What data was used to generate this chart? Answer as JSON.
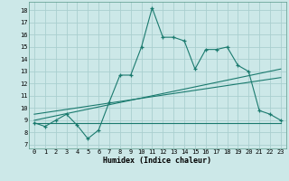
{
  "xlabel": "Humidex (Indice chaleur)",
  "background_color": "#cce8e8",
  "grid_color": "#aacfcf",
  "line_color": "#1a7a6e",
  "x_ticks": [
    0,
    1,
    2,
    3,
    4,
    5,
    6,
    7,
    8,
    9,
    10,
    11,
    12,
    13,
    14,
    15,
    16,
    17,
    18,
    19,
    20,
    21,
    22,
    23
  ],
  "y_ticks": [
    7,
    8,
    9,
    10,
    11,
    12,
    13,
    14,
    15,
    16,
    17,
    18
  ],
  "xlim": [
    -0.5,
    23.5
  ],
  "ylim": [
    6.7,
    18.7
  ],
  "series1_x": [
    0,
    1,
    2,
    3,
    4,
    5,
    6,
    7,
    8,
    9,
    10,
    11,
    12,
    13,
    14,
    15,
    16,
    17,
    18,
    19,
    20,
    21,
    22,
    23
  ],
  "series1_y": [
    8.8,
    8.5,
    9.0,
    9.5,
    8.6,
    7.5,
    8.2,
    10.5,
    12.7,
    12.7,
    15.0,
    18.2,
    15.8,
    15.8,
    15.5,
    13.2,
    14.8,
    14.8,
    15.0,
    13.5,
    13.0,
    9.8,
    9.5,
    9.0
  ],
  "series2_x": [
    0,
    23
  ],
  "series2_y": [
    8.8,
    8.8
  ],
  "series3_x": [
    0,
    23
  ],
  "series3_y": [
    9.0,
    13.2
  ],
  "series4_x": [
    0,
    23
  ],
  "series4_y": [
    9.5,
    12.5
  ]
}
